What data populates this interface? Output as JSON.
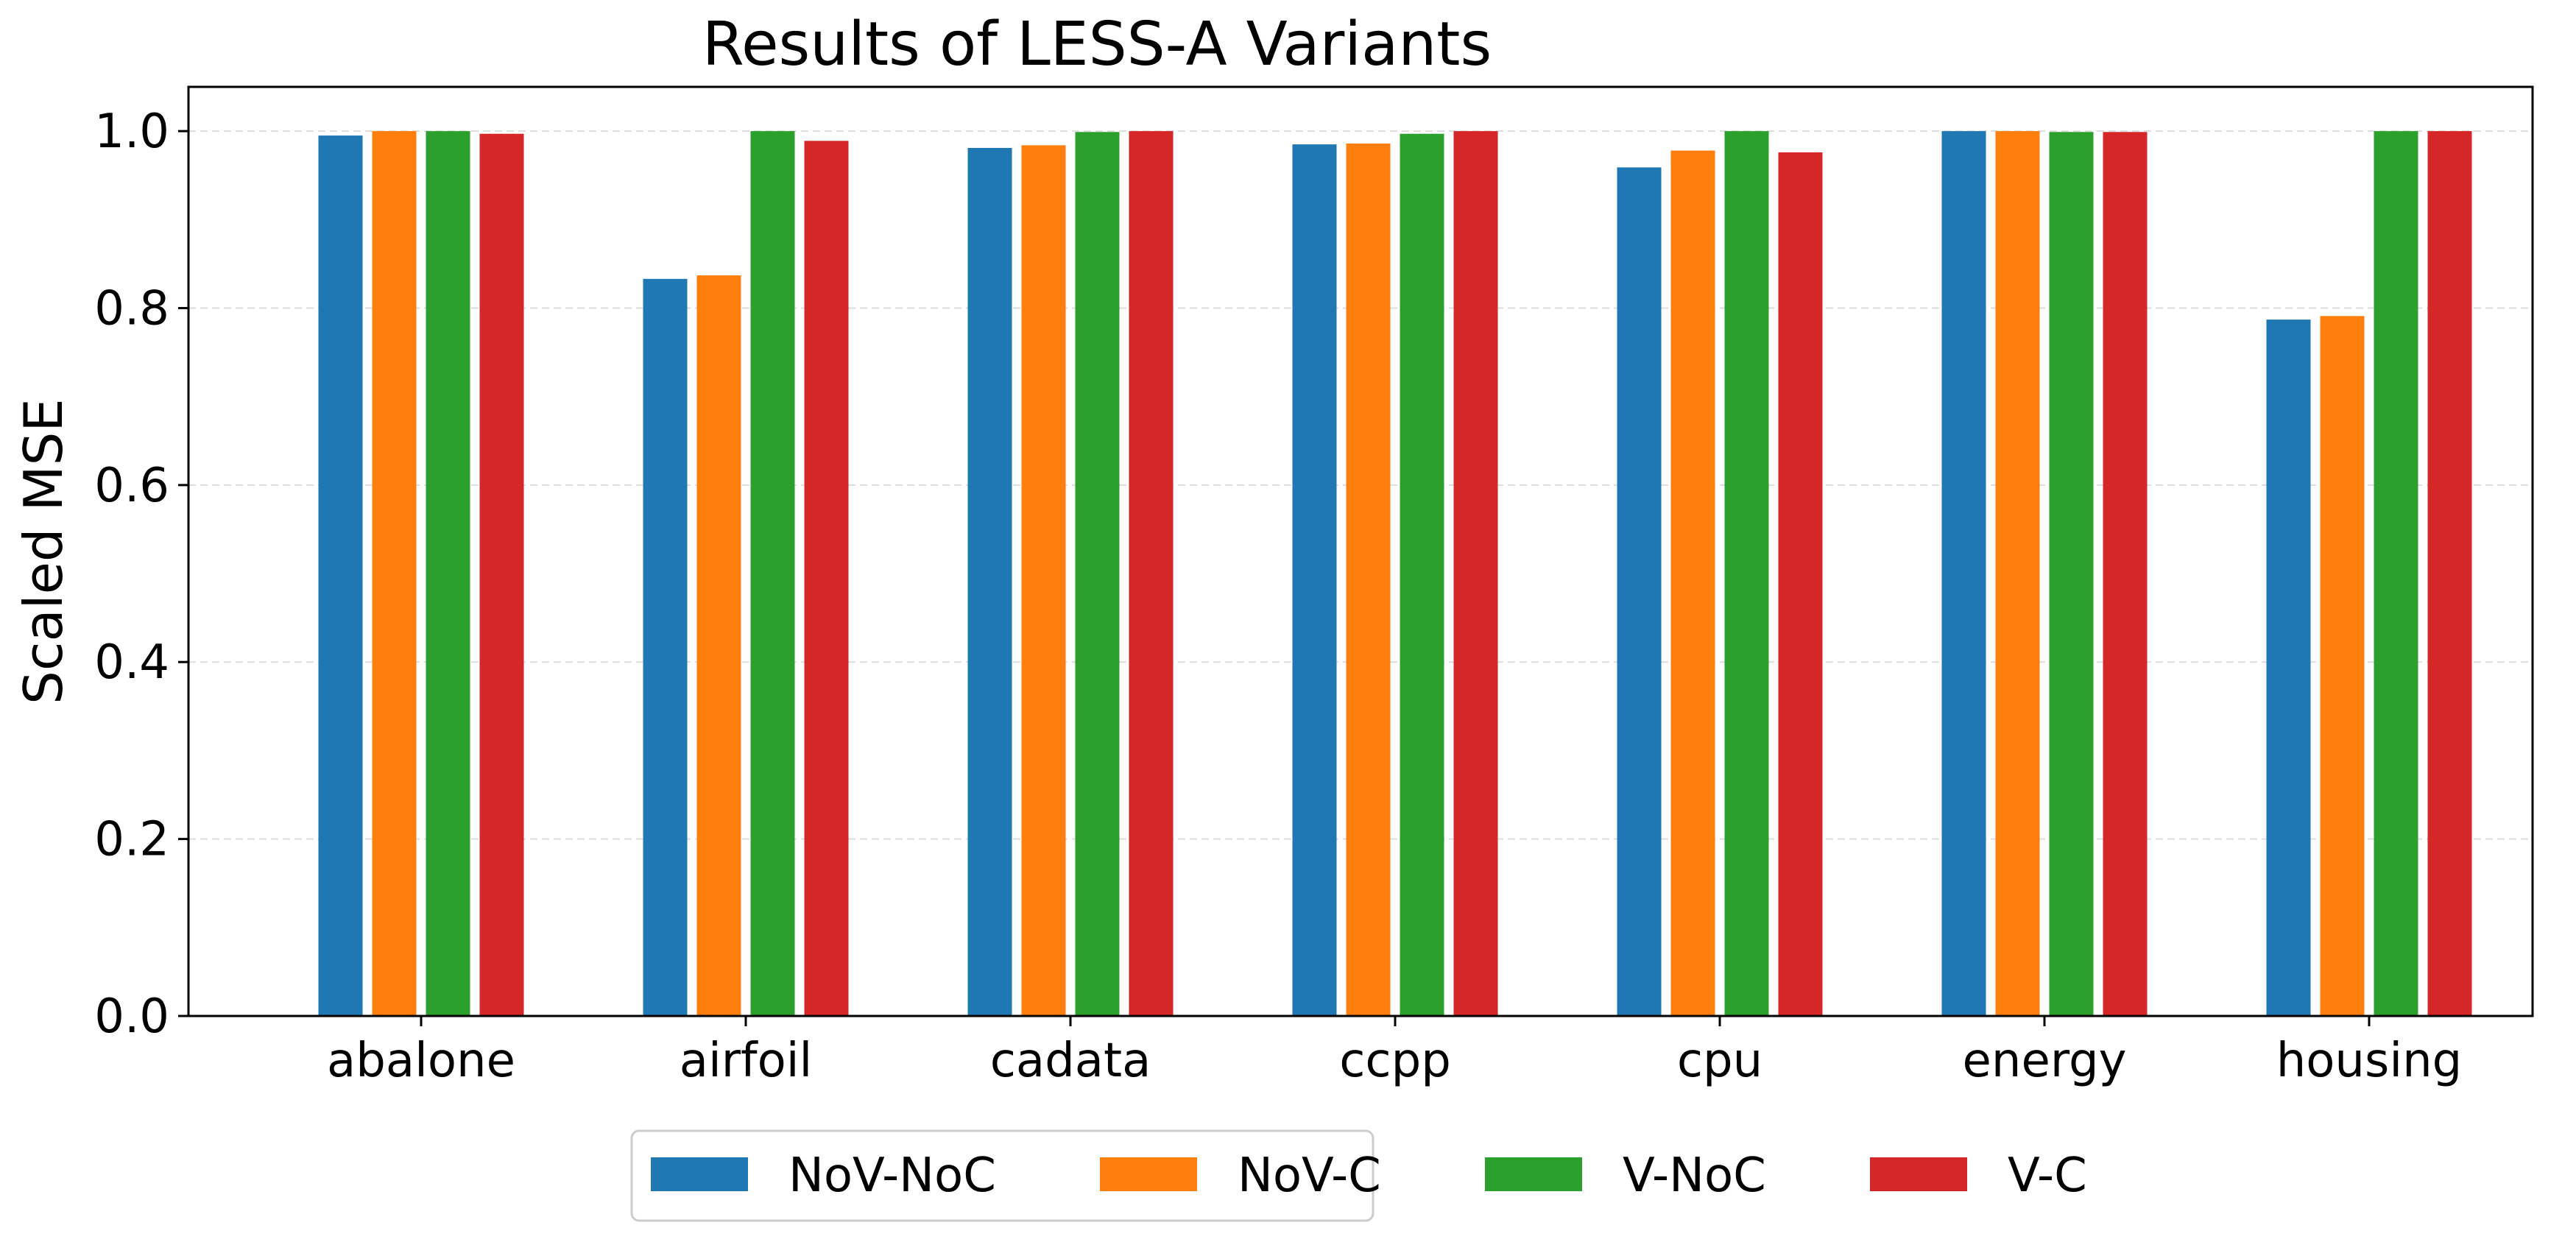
{
  "chart_data": {
    "type": "bar",
    "title": "Results of LESS-A Variants",
    "xlabel": "",
    "ylabel": "Scaled MSE",
    "ylim": [
      0,
      1.05
    ],
    "yticks": [
      "0.0",
      "0.2",
      "0.4",
      "0.6",
      "0.8",
      "1.0"
    ],
    "ytick_values": [
      0,
      0.2,
      0.4,
      0.6,
      0.8,
      1.0
    ],
    "grid": true,
    "legend_position": "bottom-center",
    "categories": [
      "abalone",
      "airfoil",
      "cadata",
      "ccpp",
      "cpu",
      "energy",
      "housing"
    ],
    "series": [
      {
        "name": "NoV-NoC",
        "color": "#1f77b4",
        "values": [
          0.995,
          0.833,
          0.981,
          0.985,
          0.959,
          1.0,
          0.787
        ]
      },
      {
        "name": "NoV-C",
        "color": "#ff7f0e",
        "values": [
          1.0,
          0.837,
          0.984,
          0.986,
          0.978,
          1.0,
          0.791
        ]
      },
      {
        "name": "V-NoC",
        "color": "#2ca02c",
        "values": [
          1.0,
          1.0,
          0.999,
          0.997,
          1.0,
          0.999,
          1.0
        ]
      },
      {
        "name": "V-C",
        "color": "#d62728",
        "values": [
          0.997,
          0.989,
          1.0,
          1.0,
          0.976,
          0.999,
          1.0
        ]
      }
    ]
  }
}
